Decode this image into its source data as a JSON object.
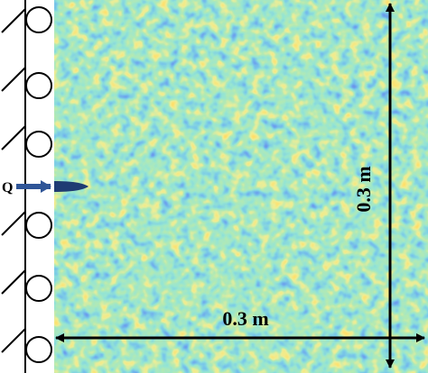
{
  "labels": {
    "load": "Q",
    "width": "0.3 m",
    "height": "0.3 m"
  }
}
